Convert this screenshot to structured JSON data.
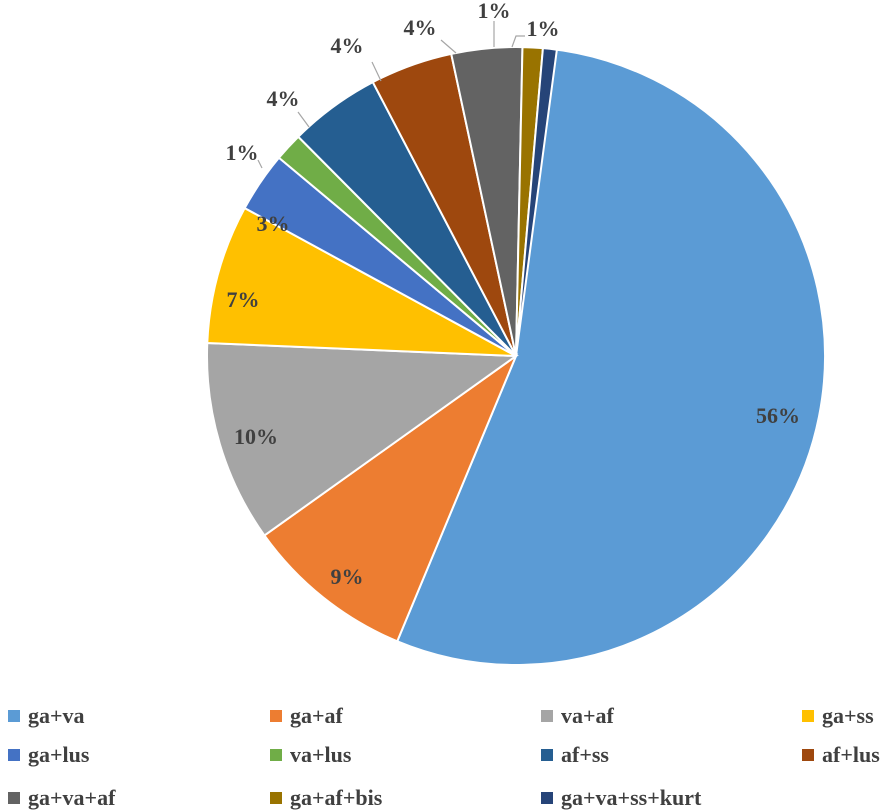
{
  "chart_data": {
    "type": "pie",
    "title": "",
    "slices": [
      {
        "label": "ga+va",
        "value": 56,
        "display": "56%",
        "color": "#5B9BD5"
      },
      {
        "label": "ga+af",
        "value": 9,
        "display": "9%",
        "color": "#ED7D31"
      },
      {
        "label": "va+af",
        "value": 10,
        "display": "10%",
        "color": "#A5A5A5"
      },
      {
        "label": "ga+ss",
        "value": 7,
        "display": "7%",
        "color": "#FFC000"
      },
      {
        "label": "ga+lus",
        "value": 3,
        "display": "3%",
        "color": "#4472C4"
      },
      {
        "label": "va+lus",
        "value": 1,
        "display": "1%",
        "color": "#70AD47"
      },
      {
        "label": "af+ss",
        "value": 4,
        "display": "4%",
        "color": "#255E91"
      },
      {
        "label": "af+lus",
        "value": 4,
        "display": "4%",
        "color": "#9E480E"
      },
      {
        "label": "ga+va+af",
        "value": 4,
        "display": "4%",
        "color": "#636363"
      },
      {
        "label": "ga+af+bis",
        "value": 1,
        "display": "1%",
        "color": "#997300"
      },
      {
        "label": "ga+va+ss+kurt",
        "value": 1,
        "display": "1%",
        "color": "#264478"
      }
    ],
    "legend_position": "bottom"
  }
}
